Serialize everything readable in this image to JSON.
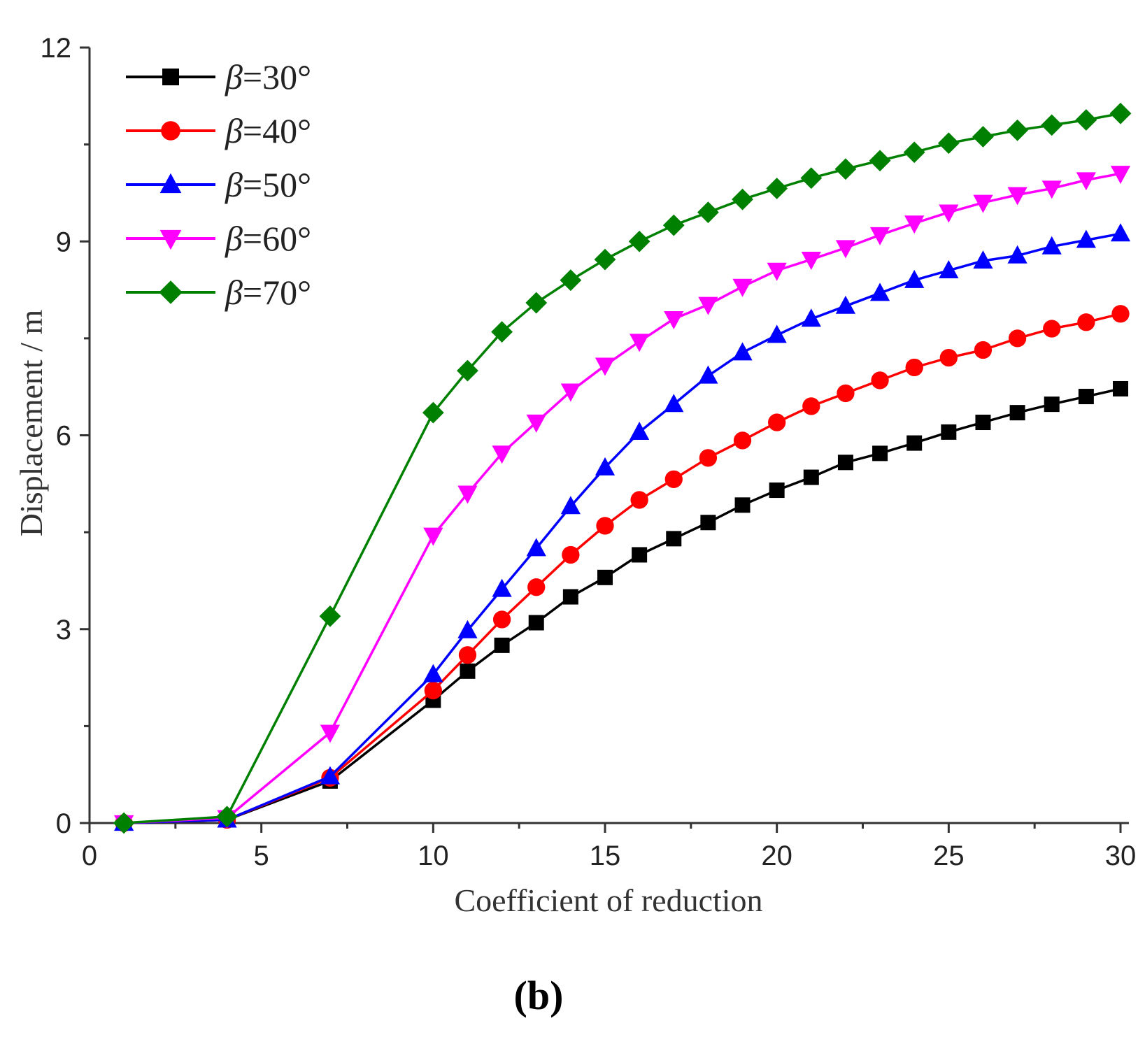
{
  "panel_label": "(b)",
  "chart_data": {
    "type": "line",
    "xlabel": "Coefficient of reduction",
    "ylabel": "Displacement / m",
    "xlim": [
      0,
      30
    ],
    "ylim": [
      0,
      12
    ],
    "xticks": [
      0,
      5,
      10,
      15,
      20,
      25,
      30
    ],
    "yticks": [
      0,
      3,
      6,
      9,
      12
    ],
    "grid": false,
    "legend_position": "top-left",
    "x": [
      1,
      4,
      7,
      10,
      11,
      12,
      13,
      14,
      15,
      16,
      17,
      18,
      19,
      20,
      21,
      22,
      23,
      24,
      25,
      26,
      27,
      28,
      29,
      30
    ],
    "series": [
      {
        "name": "β=30°",
        "legend_symbol": "β",
        "legend_value": "=30°",
        "color": "#000000",
        "marker": "square",
        "values": [
          0.0,
          0.05,
          0.65,
          1.9,
          2.35,
          2.75,
          3.1,
          3.5,
          3.8,
          4.15,
          4.4,
          4.65,
          4.92,
          5.15,
          5.35,
          5.58,
          5.72,
          5.88,
          6.05,
          6.2,
          6.35,
          6.48,
          6.6,
          6.72
        ]
      },
      {
        "name": "β=40°",
        "legend_symbol": "β",
        "legend_value": "=40°",
        "color": "#ff0000",
        "marker": "circle",
        "values": [
          0.0,
          0.05,
          0.7,
          2.05,
          2.6,
          3.15,
          3.65,
          4.15,
          4.6,
          5.0,
          5.32,
          5.65,
          5.92,
          6.2,
          6.45,
          6.65,
          6.85,
          7.05,
          7.2,
          7.32,
          7.5,
          7.65,
          7.75,
          7.88
        ]
      },
      {
        "name": "β=50°",
        "legend_symbol": "β",
        "legend_value": "=50°",
        "color": "#0000ff",
        "marker": "triangle-up",
        "values": [
          0.0,
          0.05,
          0.72,
          2.3,
          2.98,
          3.62,
          4.25,
          4.9,
          5.5,
          6.05,
          6.48,
          6.92,
          7.28,
          7.55,
          7.8,
          8.0,
          8.2,
          8.4,
          8.55,
          8.7,
          8.78,
          8.92,
          9.02,
          9.12
        ]
      },
      {
        "name": "β=60°",
        "legend_symbol": "β",
        "legend_value": "=60°",
        "color": "#ff00ff",
        "marker": "triangle-down",
        "values": [
          0.0,
          0.08,
          1.4,
          4.45,
          5.1,
          5.72,
          6.2,
          6.68,
          7.08,
          7.45,
          7.8,
          8.02,
          8.3,
          8.55,
          8.72,
          8.9,
          9.1,
          9.28,
          9.45,
          9.6,
          9.72,
          9.82,
          9.95,
          10.05
        ]
      },
      {
        "name": "β=70°",
        "legend_symbol": "β",
        "legend_value": "=70°",
        "color": "#008000",
        "marker": "diamond",
        "values": [
          0.0,
          0.1,
          3.2,
          6.35,
          7.0,
          7.6,
          8.05,
          8.4,
          8.72,
          9.0,
          9.25,
          9.45,
          9.65,
          9.82,
          9.98,
          10.12,
          10.25,
          10.38,
          10.52,
          10.62,
          10.72,
          10.8,
          10.88,
          10.98
        ]
      }
    ]
  }
}
